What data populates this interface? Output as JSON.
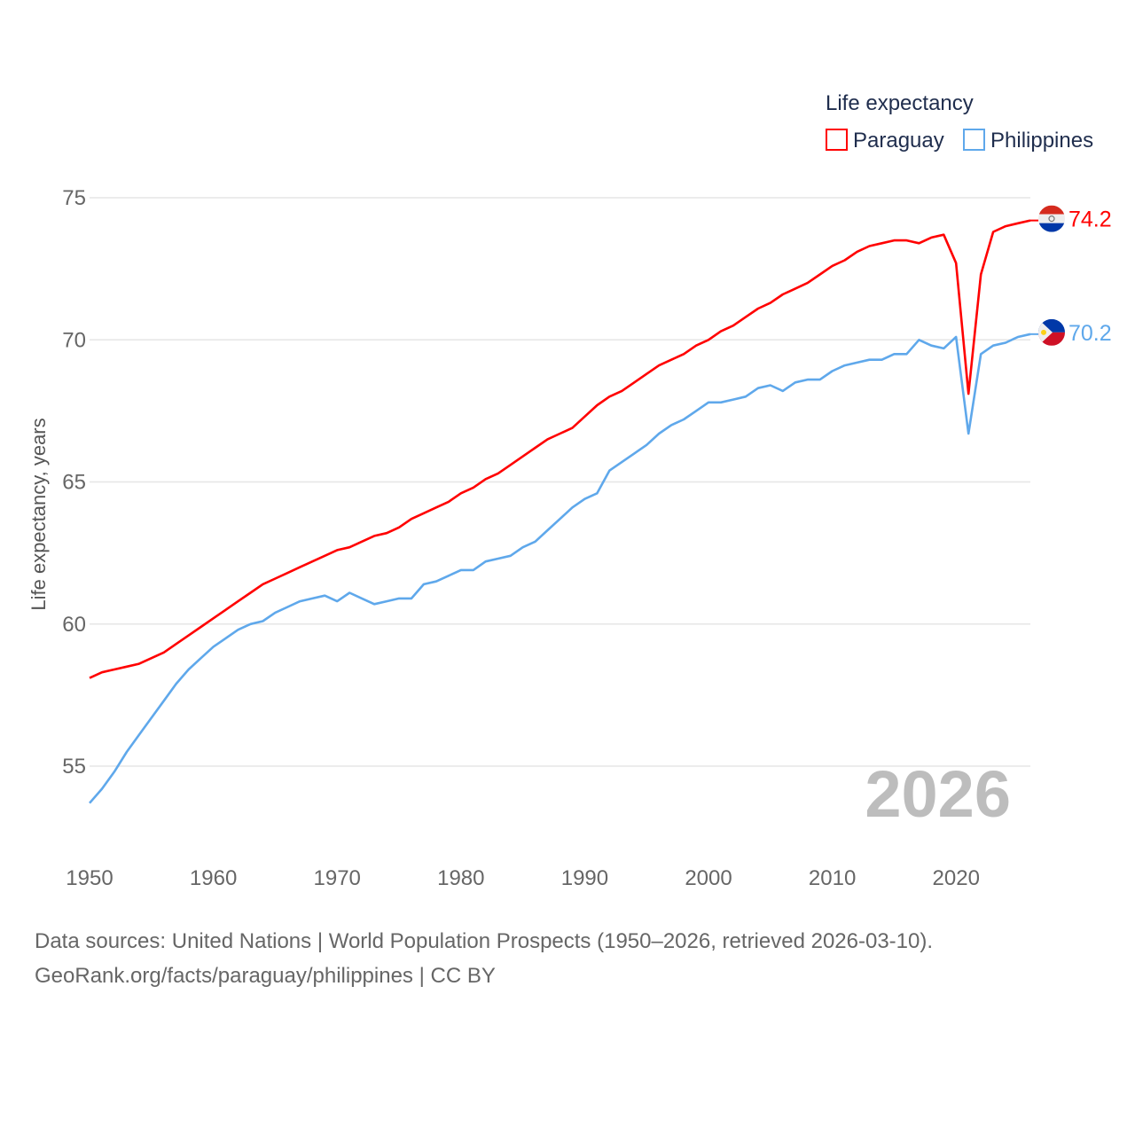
{
  "chart_data": {
    "type": "line",
    "title": "",
    "legend_title": "Life expectancy",
    "legend_placement": "top-right",
    "xlabel": "",
    "ylabel": "Life expectancy, years",
    "xlim": [
      1950,
      2026
    ],
    "ylim": [
      53.5,
      76
    ],
    "x_ticks": [
      1950,
      1960,
      1970,
      1980,
      1990,
      2000,
      2010,
      2020
    ],
    "y_ticks": [
      55,
      60,
      65,
      70,
      75
    ],
    "grid": true,
    "year_label": "2026",
    "x": [
      1950,
      1951,
      1952,
      1953,
      1954,
      1955,
      1956,
      1957,
      1958,
      1959,
      1960,
      1961,
      1962,
      1963,
      1964,
      1965,
      1966,
      1967,
      1968,
      1969,
      1970,
      1971,
      1972,
      1973,
      1974,
      1975,
      1976,
      1977,
      1978,
      1979,
      1980,
      1981,
      1982,
      1983,
      1984,
      1985,
      1986,
      1987,
      1988,
      1989,
      1990,
      1991,
      1992,
      1993,
      1994,
      1995,
      1996,
      1997,
      1998,
      1999,
      2000,
      2001,
      2002,
      2003,
      2004,
      2005,
      2006,
      2007,
      2008,
      2009,
      2010,
      2011,
      2012,
      2013,
      2014,
      2015,
      2016,
      2017,
      2018,
      2019,
      2020,
      2021,
      2022,
      2023,
      2024,
      2025,
      2026
    ],
    "series": [
      {
        "name": "Paraguay",
        "color": "#ff0000",
        "end_label": "74.2",
        "flag": "paraguay-flag",
        "values": [
          58.1,
          58.3,
          58.4,
          58.5,
          58.6,
          58.8,
          59.0,
          59.3,
          59.6,
          59.9,
          60.2,
          60.5,
          60.8,
          61.1,
          61.4,
          61.6,
          61.8,
          62.0,
          62.2,
          62.4,
          62.6,
          62.7,
          62.9,
          63.1,
          63.2,
          63.4,
          63.7,
          63.9,
          64.1,
          64.3,
          64.6,
          64.8,
          65.1,
          65.3,
          65.6,
          65.9,
          66.2,
          66.5,
          66.7,
          66.9,
          67.3,
          67.7,
          68.0,
          68.2,
          68.5,
          68.8,
          69.1,
          69.3,
          69.5,
          69.8,
          70.0,
          70.3,
          70.5,
          70.8,
          71.1,
          71.3,
          71.6,
          71.8,
          72.0,
          72.3,
          72.6,
          72.8,
          73.1,
          73.3,
          73.4,
          73.5,
          73.5,
          73.4,
          73.6,
          73.7,
          72.7,
          68.1,
          72.3,
          73.8,
          74.0,
          74.1,
          74.2
        ]
      },
      {
        "name": "Philippines",
        "color": "#5fa8eb",
        "end_label": "70.2",
        "flag": "philippines-flag",
        "values": [
          53.7,
          54.2,
          54.8,
          55.5,
          56.1,
          56.7,
          57.3,
          57.9,
          58.4,
          58.8,
          59.2,
          59.5,
          59.8,
          60.0,
          60.1,
          60.4,
          60.6,
          60.8,
          60.9,
          61.0,
          60.8,
          61.1,
          60.9,
          60.7,
          60.8,
          60.9,
          60.9,
          61.4,
          61.5,
          61.7,
          61.9,
          61.9,
          62.2,
          62.3,
          62.4,
          62.7,
          62.9,
          63.3,
          63.7,
          64.1,
          64.4,
          64.6,
          65.4,
          65.7,
          66.0,
          66.3,
          66.7,
          67.0,
          67.2,
          67.5,
          67.8,
          67.8,
          67.9,
          68.0,
          68.3,
          68.4,
          68.2,
          68.5,
          68.6,
          68.6,
          68.9,
          69.1,
          69.2,
          69.3,
          69.3,
          69.5,
          69.5,
          70.0,
          69.8,
          69.7,
          70.1,
          66.7,
          69.5,
          69.8,
          69.9,
          70.1,
          70.2
        ]
      }
    ]
  },
  "footer": {
    "line1": "Data sources: United Nations | World Population Prospects (1950–2026, retrieved 2026-03-10).",
    "line2": "GeoRank.org/facts/paraguay/philippines | CC BY"
  }
}
